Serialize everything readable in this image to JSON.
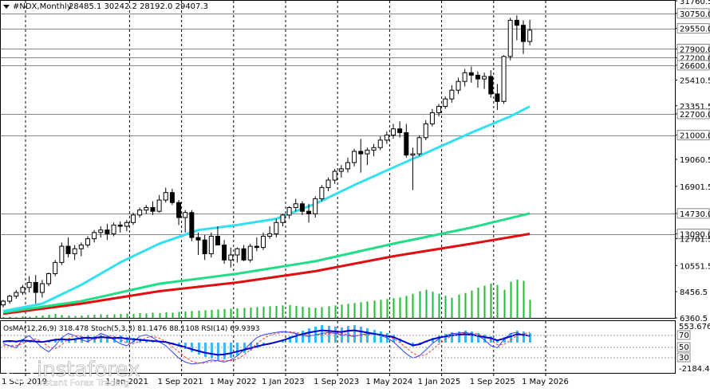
{
  "header": {
    "symbol": "#NDX,Monthly",
    "ohlc": "28485.1 30242.2 28192.0 29407.3"
  },
  "osma_header": {
    "text": "OsMA(12,26,9) 318.478 Stoch(5,3,3) 81.1476 88.1108 RSI(14) 69.9393"
  },
  "watermark": {
    "brand": "instaforex",
    "tagline": "Instant Forex Trading"
  },
  "colors": {
    "bull_candle": "#ffffff",
    "bear_candle": "#000000",
    "ma_fast": "#33e0f0",
    "ma_mid": "#22dd88",
    "ma_slow": "#e01010",
    "volume": "#22bb33",
    "osma_hist": "#33bbff",
    "macd_line": "#0000cc",
    "stoch_main": "#3344ff",
    "stoch_signal": "#ff3333",
    "level_line": "#888888"
  },
  "chart_data": {
    "type": "candlestick",
    "title": "#NDX,Monthly",
    "ylim": [
      6360,
      31760
    ],
    "y_ticks": [
      "31760.5",
      "30750.0",
      "29550.0",
      "27900.0",
      "27200.0",
      "26600.0",
      "25410.5",
      "23351.5",
      "22700.0",
      "21000.0",
      "19060.5",
      "16901.5",
      "14730.0",
      "13090.0",
      "12701.5",
      "10551.5",
      "8456.5",
      "6360.5"
    ],
    "x_tick_labels": [
      "1 Sep 2019",
      "1 Jan 2021",
      "1 Sep 2021",
      "1 May 2022",
      "1 Jan 2023",
      "1 Sep 2023",
      "1 May 2024",
      "1 Jan 2025",
      "1 Sep 2025",
      "1 May 2026"
    ],
    "x_ticks": [
      {
        "label": "1 Sep 2019",
        "index": 0
      },
      {
        "label": "1 Jan 2021",
        "index": 16
      },
      {
        "label": "1 Sep 2021",
        "index": 24
      },
      {
        "label": "1 May 2022",
        "index": 32
      },
      {
        "label": "1 Jan 2023",
        "index": 40
      },
      {
        "label": "1 Sep 2023",
        "index": 48
      },
      {
        "label": "1 May 2024",
        "index": 56
      },
      {
        "label": "1 Jan 2025",
        "index": 64
      },
      {
        "label": "1 Sep 2025",
        "index": 72
      },
      {
        "label": "1 May 2026",
        "index": 80
      }
    ],
    "horizontal_levels": [
      30750,
      29550,
      27900,
      27200,
      26600,
      22700,
      21000,
      14730,
      13090
    ],
    "candles": [
      [
        7400,
        7800,
        7200,
        7700
      ],
      [
        7700,
        8200,
        7500,
        8100
      ],
      [
        8100,
        8600,
        7900,
        8400
      ],
      [
        8400,
        9000,
        8200,
        8800
      ],
      [
        8800,
        9700,
        8400,
        9200
      ],
      [
        9200,
        9800,
        7500,
        8400
      ],
      [
        8400,
        9400,
        8000,
        9100
      ],
      [
        9100,
        10000,
        8900,
        9900
      ],
      [
        9900,
        11000,
        9700,
        10800
      ],
      [
        10800,
        12400,
        10600,
        12100
      ],
      [
        12100,
        12800,
        11200,
        11500
      ],
      [
        11500,
        12200,
        11000,
        11900
      ],
      [
        11900,
        12400,
        11300,
        12200
      ],
      [
        12200,
        12900,
        12000,
        12700
      ],
      [
        12700,
        13400,
        12400,
        13200
      ],
      [
        13200,
        13700,
        12800,
        13400
      ],
      [
        13400,
        13900,
        12600,
        13100
      ],
      [
        13100,
        14000,
        12900,
        13800
      ],
      [
        13800,
        14100,
        13200,
        13700
      ],
      [
        13700,
        14200,
        13300,
        14000
      ],
      [
        14000,
        14800,
        13800,
        14600
      ],
      [
        14600,
        15200,
        14400,
        15000
      ],
      [
        15000,
        15400,
        14700,
        15200
      ],
      [
        15200,
        15700,
        14600,
        14900
      ],
      [
        14900,
        16200,
        14800,
        15800
      ],
      [
        15800,
        16800,
        15600,
        16400
      ],
      [
        16400,
        16700,
        15400,
        15600
      ],
      [
        15600,
        15800,
        13800,
        14400
      ],
      [
        14400,
        15000,
        13200,
        14800
      ],
      [
        14800,
        15000,
        12500,
        12800
      ],
      [
        12800,
        13200,
        11400,
        12600
      ],
      [
        12600,
        13000,
        11000,
        11500
      ],
      [
        11500,
        13200,
        11200,
        12900
      ],
      [
        12900,
        13700,
        12300,
        12200
      ],
      [
        12200,
        12600,
        10700,
        11000
      ],
      [
        11000,
        12000,
        10400,
        11400
      ],
      [
        11400,
        12000,
        10800,
        11900
      ],
      [
        11900,
        12200,
        10900,
        11000
      ],
      [
        11000,
        12300,
        10800,
        12100
      ],
      [
        12100,
        12800,
        11700,
        12000
      ],
      [
        12000,
        13200,
        11800,
        12900
      ],
      [
        12900,
        13700,
        12700,
        13100
      ],
      [
        13100,
        14300,
        12800,
        14000
      ],
      [
        14000,
        14700,
        13700,
        14600
      ],
      [
        14600,
        15300,
        14300,
        15200
      ],
      [
        15200,
        15900,
        14900,
        15500
      ],
      [
        15500,
        15700,
        14600,
        14900
      ],
      [
        14900,
        15500,
        14000,
        14700
      ],
      [
        14700,
        16100,
        14400,
        15900
      ],
      [
        15900,
        17000,
        15700,
        16800
      ],
      [
        16800,
        17600,
        16500,
        17400
      ],
      [
        17400,
        18300,
        17100,
        18100
      ],
      [
        18100,
        18600,
        17600,
        18300
      ],
      [
        18300,
        19200,
        18000,
        18800
      ],
      [
        18800,
        19900,
        18500,
        19700
      ],
      [
        19700,
        20700,
        18000,
        19500
      ],
      [
        19500,
        20000,
        18600,
        19800
      ],
      [
        19800,
        20300,
        19300,
        20000
      ],
      [
        20000,
        20900,
        19800,
        20600
      ],
      [
        20600,
        21300,
        20300,
        21000
      ],
      [
        21000,
        21900,
        20700,
        21500
      ],
      [
        21500,
        22100,
        20800,
        21200
      ],
      [
        21200,
        21900,
        19200,
        19400
      ],
      [
        19400,
        20000,
        16600,
        19500
      ],
      [
        19500,
        21000,
        19300,
        20800
      ],
      [
        20800,
        22200,
        20600,
        21900
      ],
      [
        21900,
        23100,
        21700,
        22800
      ],
      [
        22800,
        23500,
        22500,
        23300
      ],
      [
        23300,
        24100,
        23100,
        23900
      ],
      [
        23900,
        25000,
        23600,
        24600
      ],
      [
        24600,
        25600,
        24300,
        25300
      ],
      [
        25300,
        26300,
        24900,
        26000
      ],
      [
        26000,
        26500,
        25200,
        25800
      ],
      [
        25800,
        26100,
        24800,
        25500
      ],
      [
        25500,
        26000,
        24700,
        25700
      ],
      [
        25700,
        26200,
        24000,
        24300
      ],
      [
        24300,
        25100,
        23000,
        23700
      ],
      [
        23700,
        27400,
        23500,
        27300
      ],
      [
        27300,
        30400,
        27000,
        30200
      ],
      [
        30200,
        30600,
        28600,
        29800
      ],
      [
        29800,
        30200,
        27500,
        28500
      ],
      [
        28500,
        30242,
        28192,
        29407
      ]
    ],
    "ma_fast": [
      [
        0,
        6900
      ],
      [
        6,
        7500
      ],
      [
        12,
        9000
      ],
      [
        18,
        10800
      ],
      [
        24,
        12300
      ],
      [
        30,
        13400
      ],
      [
        36,
        13800
      ],
      [
        42,
        14300
      ],
      [
        48,
        15500
      ],
      [
        54,
        17000
      ],
      [
        60,
        18400
      ],
      [
        66,
        19800
      ],
      [
        72,
        21200
      ],
      [
        78,
        22500
      ],
      [
        81,
        23300
      ]
    ],
    "ma_mid": [
      [
        0,
        6800
      ],
      [
        12,
        7700
      ],
      [
        24,
        9100
      ],
      [
        36,
        9900
      ],
      [
        48,
        10900
      ],
      [
        60,
        12300
      ],
      [
        72,
        13600
      ],
      [
        81,
        14730
      ]
    ],
    "ma_slow": [
      [
        0,
        6700
      ],
      [
        12,
        7500
      ],
      [
        24,
        8500
      ],
      [
        36,
        9200
      ],
      [
        48,
        10100
      ],
      [
        60,
        11300
      ],
      [
        72,
        12300
      ],
      [
        81,
        13090
      ]
    ],
    "volume": [
      2,
      3,
      2,
      4,
      3,
      5,
      6,
      8,
      10,
      7,
      6,
      5,
      6,
      7,
      8,
      9,
      8,
      9,
      10,
      11,
      10,
      12,
      11,
      13,
      12,
      14,
      13,
      15,
      16,
      17,
      18,
      19,
      20,
      21,
      22,
      23,
      24,
      25,
      26,
      27,
      28,
      29,
      30,
      31,
      32,
      30,
      28,
      26,
      25,
      27,
      29,
      31,
      33,
      35,
      37,
      39,
      41,
      43,
      45,
      47,
      49,
      51,
      55,
      60,
      66,
      70,
      65,
      60,
      55,
      50,
      58,
      62,
      68,
      75,
      80,
      85,
      82,
      70,
      90,
      95,
      92,
      45
    ],
    "osma": [
      2,
      3,
      2,
      4,
      3,
      2,
      1,
      3,
      5,
      6,
      5,
      6,
      8,
      9,
      8,
      10,
      9,
      8,
      9,
      7,
      6,
      5,
      4,
      3,
      2,
      1,
      -2,
      -5,
      -8,
      -12,
      -15,
      -18,
      -20,
      -22,
      -21,
      -19,
      -16,
      -13,
      -10,
      -7,
      -4,
      -2,
      1,
      4,
      8,
      12,
      15,
      18,
      20,
      22,
      21,
      20,
      19,
      21,
      22,
      20,
      18,
      16,
      14,
      12,
      10,
      5,
      0,
      -5,
      -3,
      2,
      6,
      9,
      11,
      13,
      14,
      15,
      14,
      12,
      10,
      8,
      4,
      7,
      11,
      15,
      14,
      12
    ],
    "stoch_main": [
      60,
      55,
      50,
      70,
      80,
      65,
      50,
      40,
      55,
      75,
      85,
      80,
      70,
      65,
      75,
      85,
      80,
      70,
      60,
      55,
      65,
      78,
      82,
      75,
      65,
      55,
      40,
      25,
      15,
      10,
      12,
      15,
      20,
      18,
      15,
      20,
      30,
      45,
      60,
      75,
      82,
      85,
      88,
      90,
      88,
      85,
      80,
      78,
      82,
      85,
      88,
      86,
      82,
      80,
      78,
      82,
      85,
      84,
      80,
      75,
      65,
      50,
      35,
      25,
      30,
      45,
      60,
      72,
      80,
      85,
      86,
      88,
      85,
      80,
      70,
      55,
      50,
      70,
      85,
      88,
      80,
      81
    ],
    "stoch_signal": [
      55,
      55,
      55,
      60,
      67,
      72,
      65,
      52,
      48,
      57,
      72,
      80,
      78,
      72,
      70,
      75,
      80,
      78,
      70,
      62,
      60,
      66,
      75,
      78,
      74,
      65,
      53,
      40,
      27,
      17,
      12,
      12,
      16,
      18,
      18,
      18,
      22,
      32,
      45,
      60,
      72,
      81,
      85,
      88,
      89,
      88,
      84,
      81,
      80,
      82,
      85,
      86,
      85,
      83,
      80,
      80,
      82,
      84,
      83,
      80,
      73,
      63,
      50,
      37,
      30,
      33,
      45,
      59,
      71,
      79,
      84,
      86,
      86,
      84,
      78,
      68,
      58,
      58,
      68,
      81,
      84,
      88
    ],
    "osma_scale_labels": [
      "553.676",
      "70",
      "50",
      "30",
      "-2184.483"
    ]
  }
}
